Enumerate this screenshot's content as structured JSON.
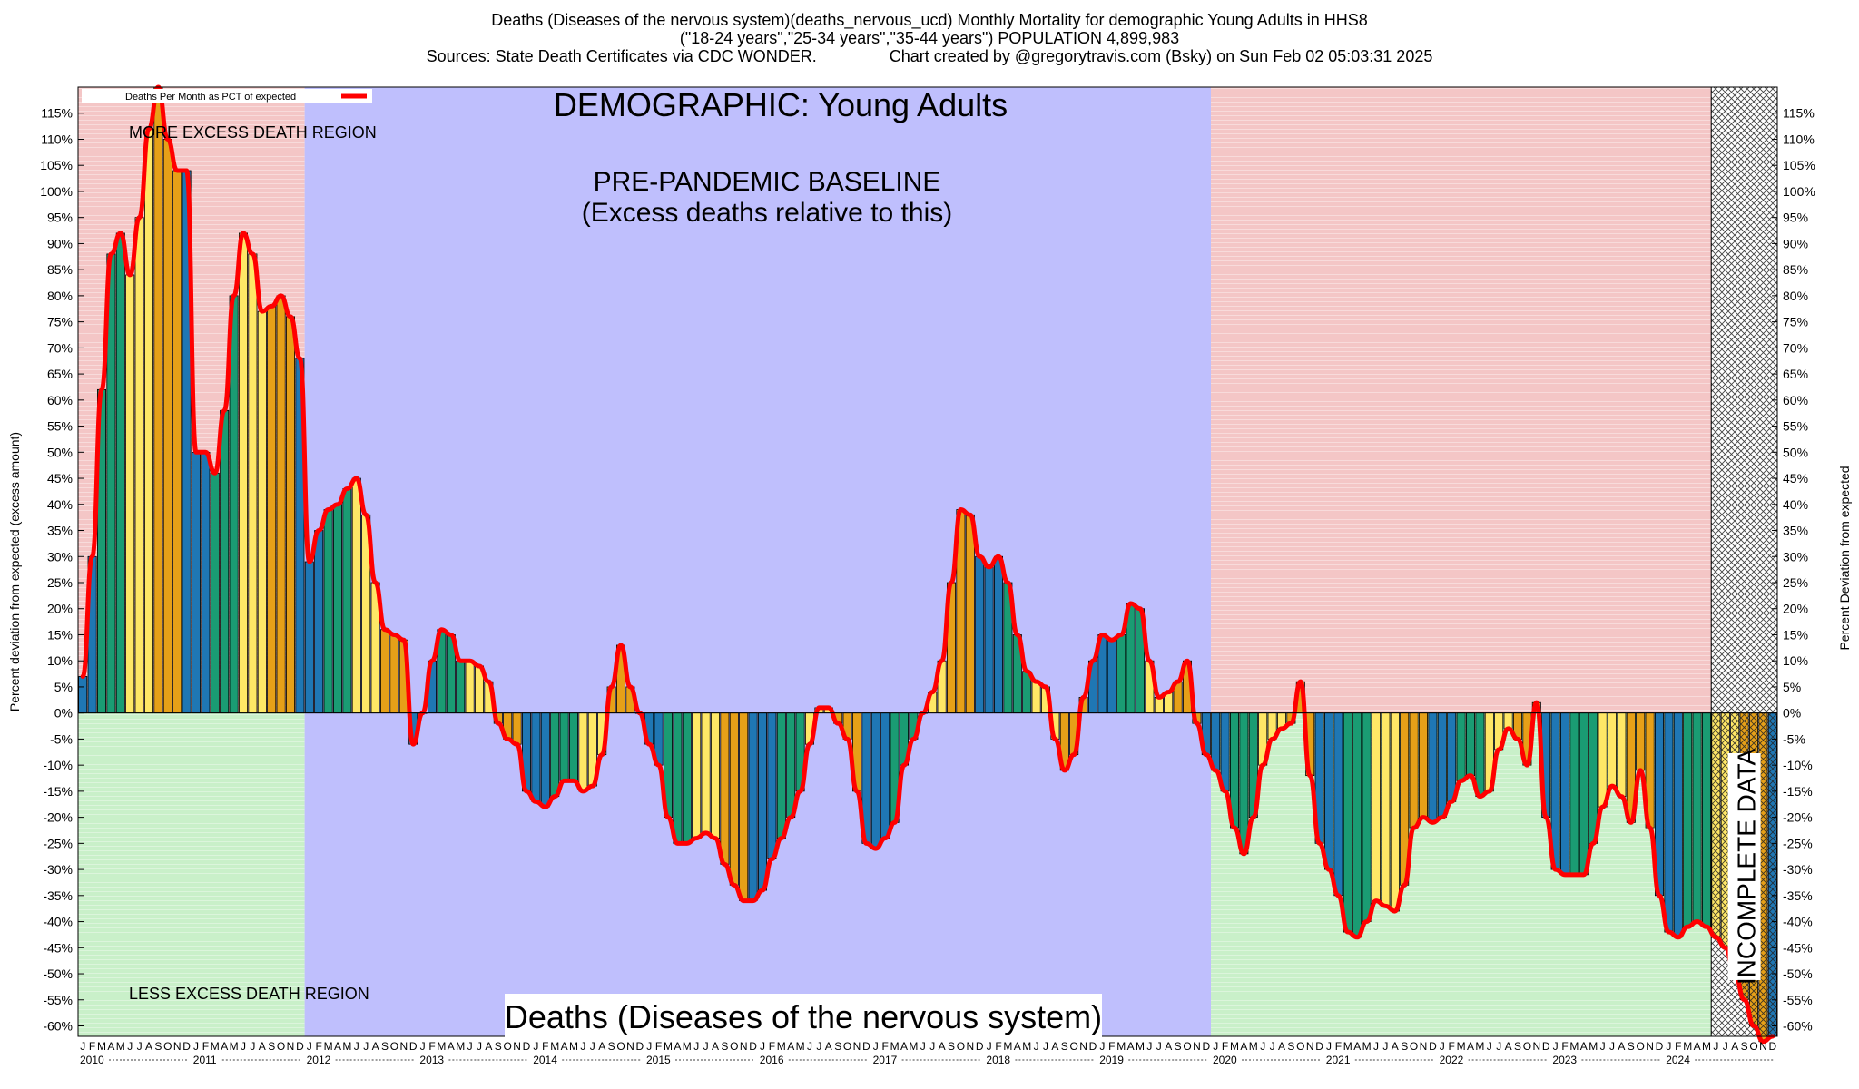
{
  "header": {
    "line1": "Deaths (Diseases of the nervous system)(deaths_nervous_ucd) Monthly Mortality for demographic Young Adults in HHS8",
    "line2": "(\"18-24 years\",\"25-34 years\",\"35-44 years\") POPULATION 4,899,983",
    "line3": "Sources: State Death Certificates via CDC WONDER.                Chart created by @gregorytravis.com (Bsky) on Sun Feb 02 05:03:31 2025"
  },
  "chart_data": {
    "type": "bar",
    "title": "DEMOGRAPHIC: Young Adults",
    "bottom_title": "Deaths (Diseases of the nervous system)",
    "ylabel_left": "Percent deviation from expected (excess amount)",
    "ylabel_right": "Percent Deviation from expected",
    "legend": {
      "label": "Deaths Per Month as PCT of expected",
      "color": "#ff0000",
      "position": "top-left"
    },
    "ylim": [
      -62,
      120
    ],
    "y_ticks": [
      -60,
      -55,
      -50,
      -45,
      -40,
      -35,
      -30,
      -25,
      -20,
      -15,
      -10,
      -5,
      0,
      5,
      10,
      15,
      20,
      25,
      30,
      35,
      40,
      45,
      50,
      55,
      60,
      65,
      70,
      75,
      80,
      85,
      90,
      95,
      100,
      105,
      110,
      115
    ],
    "y_tick_suffix": "%",
    "grid": true,
    "start_year": 2010,
    "months": 180,
    "month_letters": [
      "J",
      "F",
      "M",
      "A",
      "M",
      "J",
      "J",
      "A",
      "S",
      "O",
      "N",
      "D"
    ],
    "years": [
      "2010",
      "2011",
      "2012",
      "2013",
      "2014",
      "2015",
      "2016",
      "2017",
      "2018",
      "2019",
      "2020",
      "2021",
      "2022",
      "2023",
      "2024"
    ],
    "season_colors": {
      "winter": "#1f77b4",
      "spring": "#1a9c73",
      "summer": "#ffe766",
      "fall": "#e6a018"
    },
    "regions": [
      {
        "label": "MORE EXCESS DEATH REGION",
        "from_month": 0,
        "to_month": 24,
        "side": "positive",
        "color": "#f4c6c6"
      },
      {
        "label": "LESS EXCESS DEATH REGION",
        "from_month": 0,
        "to_month": 24,
        "side": "negative",
        "color": "#c9f0c9"
      },
      {
        "label": "",
        "from_month": 120,
        "to_month": 173,
        "side": "positive",
        "color": "#f4c6c6"
      },
      {
        "label": "",
        "from_month": 120,
        "to_month": 173,
        "side": "negative",
        "color": "#c9f0c9"
      }
    ],
    "baseline": {
      "label_line1": "PRE-PANDEMIC BASELINE",
      "label_line2": "(Excess deaths relative to this)",
      "from_month": 24,
      "to_month": 120,
      "color": "#bfbffd"
    },
    "incomplete": {
      "label": "INCOMPLETE DATA",
      "from_month": 173,
      "to_month": 180
    },
    "values": [
      7,
      30,
      62,
      88,
      92,
      84,
      95,
      112,
      120,
      110,
      104,
      104,
      50,
      50,
      46,
      58,
      80,
      92,
      88,
      77,
      78,
      80,
      76,
      68,
      29,
      35,
      39,
      40,
      43,
      45,
      38,
      25,
      16,
      15,
      14,
      -6,
      0,
      10,
      16,
      15,
      10,
      10,
      9,
      6,
      -2,
      -5,
      -6,
      -15,
      -17,
      -18,
      -16,
      -13,
      -13,
      -15,
      -14,
      -8,
      5,
      13,
      5,
      0,
      -6,
      -10,
      -20,
      -25,
      -25,
      -24,
      -23,
      -24,
      -29,
      -33,
      -36,
      -36,
      -34,
      -28,
      -24,
      -20,
      -15,
      -6,
      1,
      1,
      -2,
      -5,
      -15,
      -25,
      -26,
      -24,
      -21,
      -10,
      -5,
      0,
      4,
      10,
      25,
      39,
      38,
      30,
      28,
      30,
      25,
      15,
      8,
      6,
      5,
      -5,
      -11,
      -8,
      3,
      10,
      15,
      14,
      15,
      21,
      20,
      10,
      3,
      4,
      6,
      10,
      -2,
      -8,
      -11,
      -15,
      -22,
      -27,
      -20,
      -10,
      -5,
      -3,
      -2,
      6,
      -12,
      -25,
      -30,
      -35,
      -42,
      -43,
      -40,
      -36,
      -37,
      -38,
      -33,
      -22,
      -20,
      -21,
      -20,
      -17,
      -13,
      -12,
      -16,
      -15,
      -7,
      -3,
      -5,
      -10,
      2,
      -20,
      -30,
      -31,
      -31,
      -31,
      -25,
      -18,
      -14,
      -16,
      -21,
      -11,
      -22,
      -35,
      -42,
      -43,
      -41,
      -40,
      -41,
      -43,
      -45,
      -50,
      -55,
      -60,
      -63,
      -62
    ]
  }
}
